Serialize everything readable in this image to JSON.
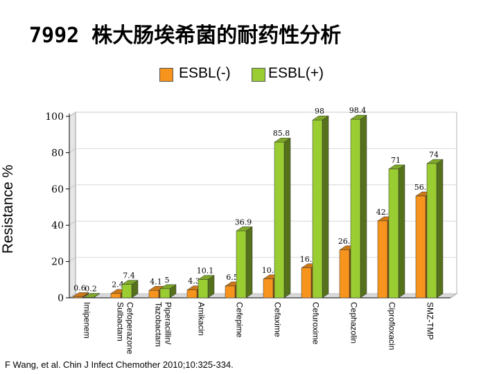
{
  "chart_data": {
    "type": "bar",
    "title": "7992 株大肠埃希菌的耐药性分析",
    "ylabel": "Resistance %",
    "ylim": [
      0,
      100
    ],
    "yticks": [
      0,
      20,
      40,
      60,
      80,
      100
    ],
    "legend_position": "top-center",
    "categories": [
      "Imipenem",
      "Cefoperazone\nSulbactam",
      "Piperacillin/\nTazobactam",
      "Amikacin",
      "Cefepime",
      "Cefaxime",
      "Cefuroxime",
      "Cephazolin",
      "Ciprofloxacin",
      "SMZ-TMP"
    ],
    "series": [
      {
        "name": "ESBL(-)",
        "color": "#f7941d",
        "values": [
          0.6,
          2.4,
          4.1,
          4.3,
          6.5,
          10.4,
          16.5,
          26.4,
          42.4,
          56.1
        ],
        "labels": [
          "0.6",
          "2.4",
          "4.1",
          "4.3",
          "6.5",
          "10.4",
          "16.5",
          "26.4",
          "42.4",
          "56.1"
        ]
      },
      {
        "name": "ESBL(+)",
        "color": "#9acd32",
        "values": [
          0.2,
          7.4,
          5,
          10.1,
          36.9,
          85.8,
          98,
          98.4,
          71,
          74
        ],
        "labels": [
          "0.2",
          "7.4",
          "5",
          "10.1",
          "36.9",
          "85.8",
          "98",
          "98.4",
          "71",
          "74"
        ]
      }
    ]
  },
  "citation": "F Wang, et al. Chin J Infect Chemother 2010;10:325-334."
}
